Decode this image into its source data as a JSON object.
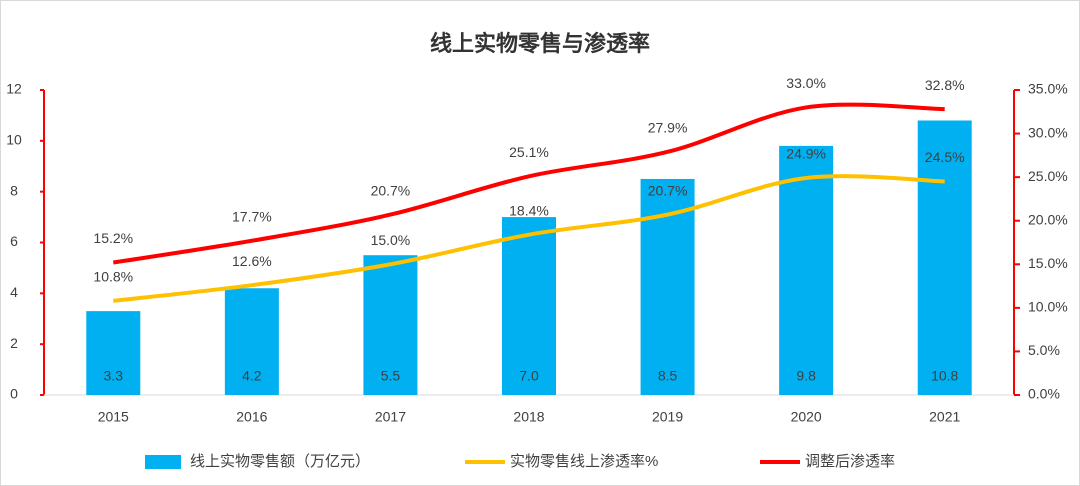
{
  "chart_data": {
    "type": "bar-line",
    "title": "线上实物零售与渗透率",
    "categories": [
      "2015",
      "2016",
      "2017",
      "2018",
      "2019",
      "2020",
      "2021"
    ],
    "series": [
      {
        "name": "线上实物零售额（万亿元）",
        "color": "#00b0f0",
        "type": "bar",
        "values": [
          3.3,
          4.2,
          5.5,
          7.0,
          8.5,
          9.8,
          10.8
        ],
        "value_labels": [
          "3.3",
          "4.2",
          "5.5",
          "7.0",
          "8.5",
          "9.8",
          "10.8"
        ]
      },
      {
        "name": "实物零售线上渗透率%",
        "color": "#ffc000",
        "type": "line",
        "axis": "y2",
        "values": [
          10.8,
          12.6,
          15.0,
          18.4,
          20.7,
          24.9,
          24.5
        ],
        "value_labels": [
          "10.8%",
          "12.6%",
          "15.0%",
          "18.4%",
          "20.7%",
          "24.9%",
          "24.5%"
        ]
      },
      {
        "name": "调整后渗透率",
        "color": "#ff0000",
        "type": "line",
        "axis": "y2",
        "values": [
          15.2,
          17.7,
          20.7,
          25.1,
          27.9,
          33.0,
          32.8
        ],
        "value_labels": [
          "15.2%",
          "17.7%",
          "20.7%",
          "25.1%",
          "27.9%",
          "33.0%",
          "32.8%"
        ]
      }
    ],
    "ylim": [
      0,
      12
    ],
    "yticks": [
      0,
      2,
      4,
      6,
      8,
      10,
      12
    ],
    "y2lim": [
      0,
      35
    ],
    "y2ticks": [
      {
        "value": 0,
        "label": "0.0%"
      },
      {
        "value": 5,
        "label": "5.0%"
      },
      {
        "value": 10,
        "label": "10.0%"
      },
      {
        "value": 15,
        "label": "15.0%"
      },
      {
        "value": 20,
        "label": "20.0%"
      },
      {
        "value": 25,
        "label": "25.0%"
      },
      {
        "value": 30,
        "label": "30.0%"
      },
      {
        "value": 35,
        "label": "35.0%"
      }
    ],
    "axis_color": "#ff0000"
  }
}
